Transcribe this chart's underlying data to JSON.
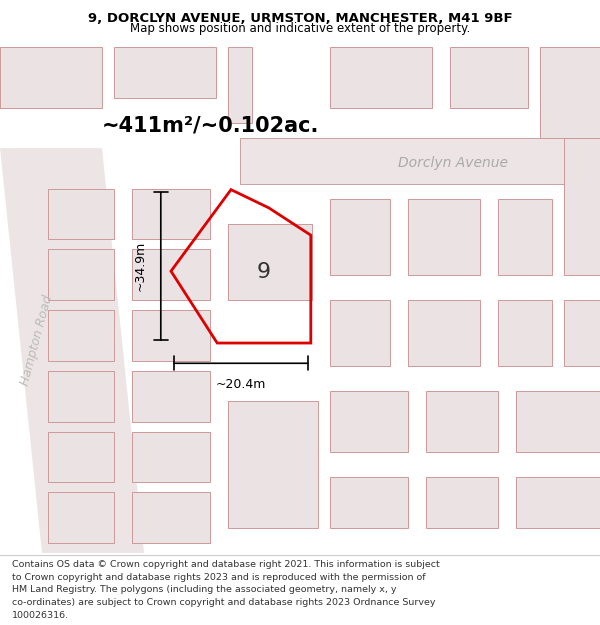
{
  "title_line1": "9, DORCLYN AVENUE, URMSTON, MANCHESTER, M41 9BF",
  "title_line2": "Map shows position and indicative extent of the property.",
  "area_label": "~411m²/~0.102ac.",
  "property_number": "9",
  "dim_height": "~34.9m",
  "dim_width": "~20.4m",
  "road_label": "Dorclyn Avenue",
  "street_label": "Hampton Road",
  "footer_lines": [
    "Contains OS data © Crown copyright and database right 2021. This information is subject",
    "to Crown copyright and database rights 2023 and is reproduced with the permission of",
    "HM Land Registry. The polygons (including the associated geometry, namely x, y",
    "co-ordinates) are subject to Crown copyright and database rights 2023 Ordnance Survey",
    "100026316."
  ],
  "map_bg": "#f5eeee",
  "building_fill": "#ebe3e3",
  "building_edge": "#cc9999",
  "property_edge": "#dd0000",
  "road_edge": "#c8a0a0"
}
